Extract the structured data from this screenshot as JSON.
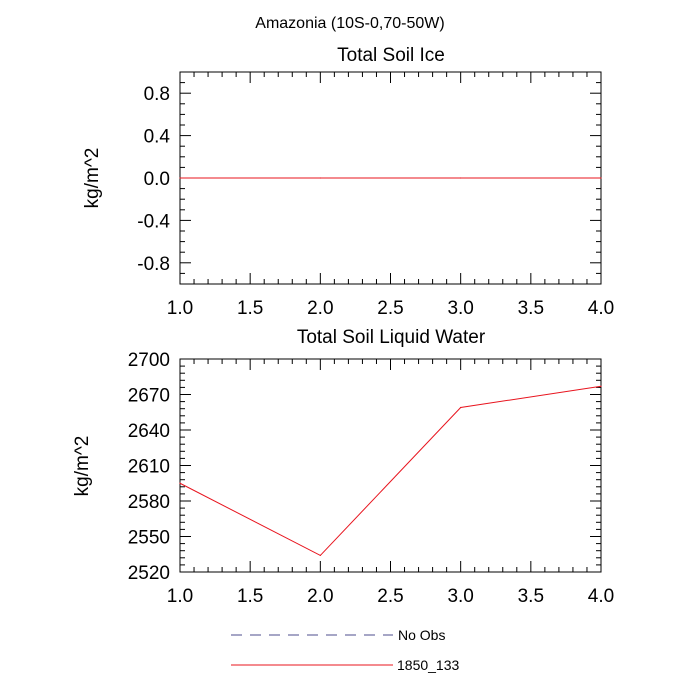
{
  "page": {
    "title": "Amazonia (10S-0,70-50W)"
  },
  "chart_data": [
    {
      "type": "line",
      "title": "Total Soil Ice",
      "xlabel": "",
      "ylabel": "kg/m^2",
      "xlim": [
        1.0,
        4.0
      ],
      "ylim": [
        -1.0,
        1.0
      ],
      "xticks": [
        "1.0",
        "1.5",
        "2.0",
        "2.5",
        "3.0",
        "3.5",
        "4.0"
      ],
      "yticks": [
        "-0.8",
        "-0.4",
        "0.0",
        "0.4",
        "0.8"
      ],
      "grid": false,
      "series": [
        {
          "name": "1850_133",
          "color": "#e8141e",
          "x": [
            1,
            2,
            3,
            4
          ],
          "y": [
            0.0,
            0.0,
            0.0,
            0.0
          ]
        }
      ]
    },
    {
      "type": "line",
      "title": "Total Soil Liquid Water",
      "xlabel": "",
      "ylabel": "kg/m^2",
      "xlim": [
        1.0,
        4.0
      ],
      "ylim": [
        2520,
        2700
      ],
      "xticks": [
        "1.0",
        "1.5",
        "2.0",
        "2.5",
        "3.0",
        "3.5",
        "4.0"
      ],
      "yticks": [
        "2520",
        "2550",
        "2580",
        "2610",
        "2640",
        "2670",
        "2700"
      ],
      "grid": false,
      "series": [
        {
          "name": "1850_133",
          "color": "#e8141e",
          "x": [
            1,
            2,
            3,
            4
          ],
          "y": [
            2595,
            2534,
            2659,
            2677
          ]
        }
      ]
    }
  ],
  "legend": {
    "placement": "bottom-center",
    "items": [
      {
        "label": "No Obs",
        "color": "#4d4d8c",
        "style": "dashed"
      },
      {
        "label": "1850_133",
        "color": "#e8141e",
        "style": "solid"
      }
    ]
  }
}
